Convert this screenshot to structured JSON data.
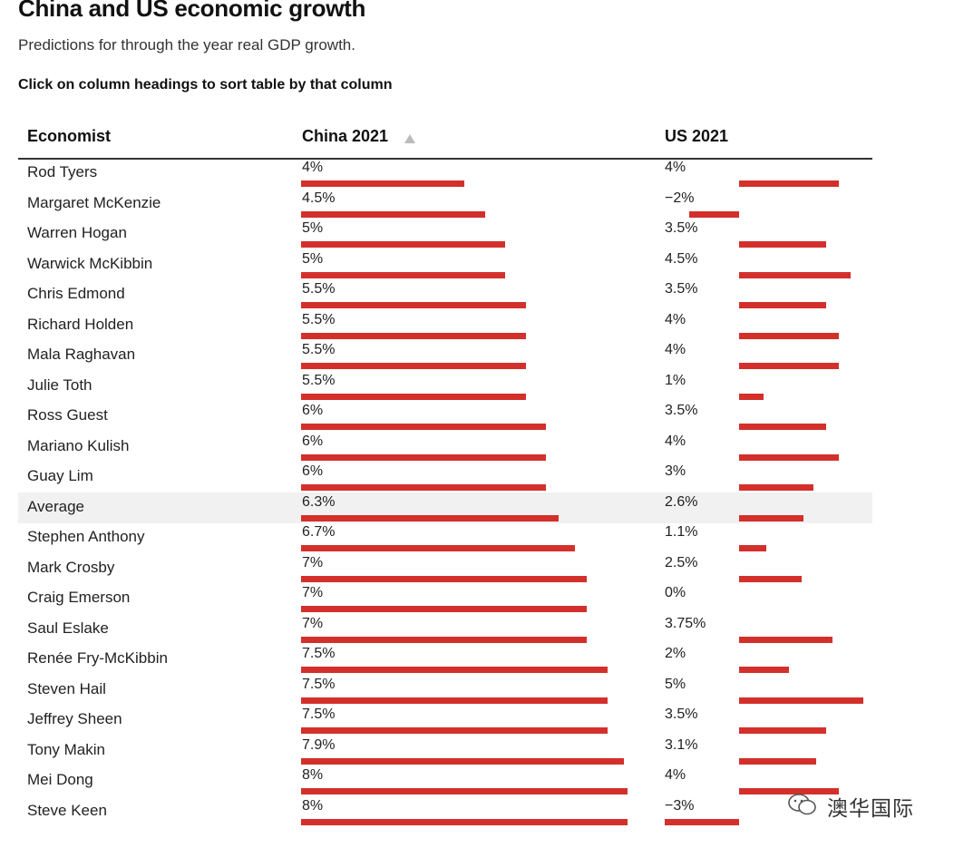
{
  "title": "China and US economic growth",
  "subtitle": "Predictions for through the year real GDP growth.",
  "instruction": "Click on column headings to sort table by that column",
  "columns": {
    "economist": "Economist",
    "china": "China 2021",
    "us": "US 2021"
  },
  "sort": {
    "column": "China 2021",
    "direction": "ascending"
  },
  "colors": {
    "bar": "#d3302c",
    "average_row_bg": "#f1f1f1"
  },
  "watermark": "澳华国际",
  "chart_data": {
    "type": "table",
    "title": "China and US economic growth",
    "subtitle": "Predictions for through the year real GDP growth.",
    "columns": [
      "Economist",
      "China 2021",
      "US 2021"
    ],
    "rows": [
      {
        "name": "Rod Tyers",
        "china": 4,
        "china_label": "4%",
        "us": 4,
        "us_label": "4%"
      },
      {
        "name": "Margaret McKenzie",
        "china": 4.5,
        "china_label": "4.5%",
        "us": -2,
        "us_label": "−2%"
      },
      {
        "name": "Warren Hogan",
        "china": 5,
        "china_label": "5%",
        "us": 3.5,
        "us_label": "3.5%"
      },
      {
        "name": "Warwick McKibbin",
        "china": 5,
        "china_label": "5%",
        "us": 4.5,
        "us_label": "4.5%"
      },
      {
        "name": "Chris Edmond",
        "china": 5.5,
        "china_label": "5.5%",
        "us": 3.5,
        "us_label": "3.5%"
      },
      {
        "name": "Richard Holden",
        "china": 5.5,
        "china_label": "5.5%",
        "us": 4,
        "us_label": "4%"
      },
      {
        "name": "Mala Raghavan",
        "china": 5.5,
        "china_label": "5.5%",
        "us": 4,
        "us_label": "4%"
      },
      {
        "name": "Julie Toth",
        "china": 5.5,
        "china_label": "5.5%",
        "us": 1,
        "us_label": "1%"
      },
      {
        "name": "Ross Guest",
        "china": 6,
        "china_label": "6%",
        "us": 3.5,
        "us_label": "3.5%"
      },
      {
        "name": "Mariano Kulish",
        "china": 6,
        "china_label": "6%",
        "us": 4,
        "us_label": "4%"
      },
      {
        "name": "Guay Lim",
        "china": 6,
        "china_label": "6%",
        "us": 3,
        "us_label": "3%"
      },
      {
        "name": "Average",
        "china": 6.3,
        "china_label": "6.3%",
        "us": 2.6,
        "us_label": "2.6%",
        "average": true
      },
      {
        "name": "Stephen Anthony",
        "china": 6.7,
        "china_label": "6.7%",
        "us": 1.1,
        "us_label": "1.1%"
      },
      {
        "name": "Mark Crosby",
        "china": 7,
        "china_label": "7%",
        "us": 2.5,
        "us_label": "2.5%"
      },
      {
        "name": "Craig Emerson",
        "china": 7,
        "china_label": "7%",
        "us": 0,
        "us_label": "0%"
      },
      {
        "name": "Saul Eslake",
        "china": 7,
        "china_label": "7%",
        "us": 3.75,
        "us_label": "3.75%"
      },
      {
        "name": "Renée Fry-McKibbin",
        "china": 7.5,
        "china_label": "7.5%",
        "us": 2,
        "us_label": "2%"
      },
      {
        "name": "Steven Hail",
        "china": 7.5,
        "china_label": "7.5%",
        "us": 5,
        "us_label": "5%"
      },
      {
        "name": "Jeffrey Sheen",
        "china": 7.5,
        "china_label": "7.5%",
        "us": 3.5,
        "us_label": "3.5%"
      },
      {
        "name": "Tony Makin",
        "china": 7.9,
        "china_label": "7.9%",
        "us": 3.1,
        "us_label": "3.1%"
      },
      {
        "name": "Mei Dong",
        "china": 8,
        "china_label": "8%",
        "us": 4,
        "us_label": "4%"
      },
      {
        "name": "Steve Keen",
        "china": 8,
        "china_label": "8%",
        "us": -3,
        "us_label": "−3%"
      }
    ]
  }
}
